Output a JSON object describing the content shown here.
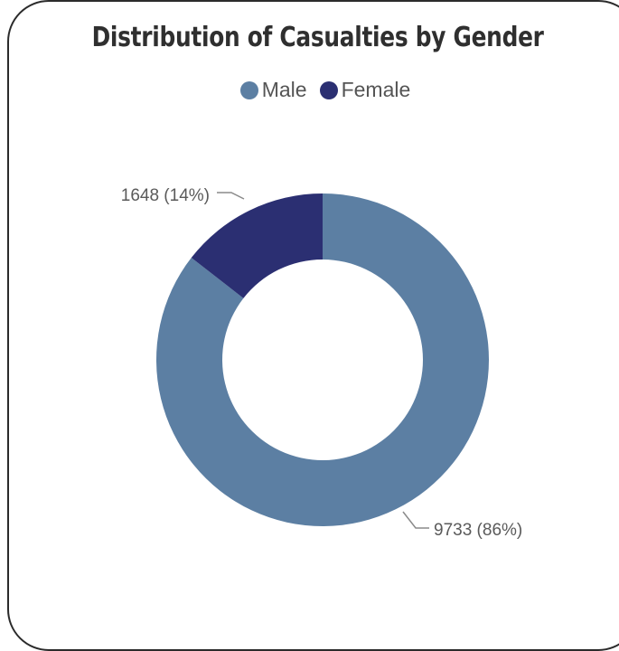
{
  "chart_data": {
    "type": "pie",
    "variant": "donut",
    "title": "Distribution of Casualties by Gender",
    "legend_position": "top-center",
    "categories": [
      "Male",
      "Female"
    ],
    "values": [
      9733,
      1648
    ],
    "percent_labels": [
      "86%",
      "14%"
    ],
    "data_labels": [
      "9733 (86%)",
      "1648 (14%)"
    ],
    "colors": [
      "#5c7fa3",
      "#2b2f72"
    ]
  }
}
